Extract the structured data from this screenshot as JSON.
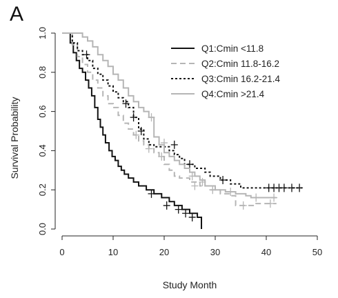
{
  "panel_label": "A",
  "chart_data": {
    "type": "line",
    "title": "",
    "xlabel": "Study Month",
    "ylabel": "Survival Probability",
    "xlim": [
      0,
      50
    ],
    "ylim": [
      0,
      1
    ],
    "xticks": [
      0,
      10,
      20,
      30,
      40,
      50
    ],
    "yticks": [
      0.0,
      0.2,
      0.4,
      0.6,
      0.8,
      1.0
    ],
    "ytick_labels": [
      "0.0",
      "0.2",
      "0.4",
      "0.6",
      "0.8",
      "1.0"
    ],
    "xtick_labels": [
      "0",
      "10",
      "20",
      "30",
      "40",
      "50"
    ],
    "grid": false,
    "legend_position": "top-right",
    "series": [
      {
        "name": "Q1:Cmin <11.8",
        "color": "#111111",
        "dash": "solid",
        "points": [
          [
            0,
            1.0
          ],
          [
            1,
            1.0
          ],
          [
            1.6,
            0.95
          ],
          [
            2.2,
            0.9
          ],
          [
            2.8,
            0.86
          ],
          [
            3.4,
            0.82
          ],
          [
            4,
            0.8
          ],
          [
            4.6,
            0.76
          ],
          [
            5.2,
            0.72
          ],
          [
            5.8,
            0.68
          ],
          [
            6.4,
            0.62
          ],
          [
            7,
            0.56
          ],
          [
            7.5,
            0.52
          ],
          [
            8,
            0.48
          ],
          [
            8.5,
            0.44
          ],
          [
            9.2,
            0.4
          ],
          [
            9.8,
            0.37
          ],
          [
            10.4,
            0.35
          ],
          [
            11,
            0.32
          ],
          [
            11.6,
            0.3
          ],
          [
            12.2,
            0.28
          ],
          [
            13,
            0.26
          ],
          [
            14,
            0.24
          ],
          [
            15,
            0.22
          ],
          [
            16.5,
            0.2
          ],
          [
            18,
            0.18
          ],
          [
            19.5,
            0.16
          ],
          [
            21,
            0.14
          ],
          [
            22,
            0.12
          ],
          [
            23.5,
            0.1
          ],
          [
            25,
            0.08
          ],
          [
            26.5,
            0.06
          ],
          [
            27.3,
            0.0
          ]
        ],
        "censored": [
          [
            17.5,
            0.18
          ],
          [
            20.5,
            0.12
          ],
          [
            22.8,
            0.1
          ],
          [
            24.2,
            0.08
          ],
          [
            25.5,
            0.06
          ]
        ]
      },
      {
        "name": "Q2:Cmin 11.8-16.2",
        "color": "#b5b5b5",
        "dash": "long",
        "points": [
          [
            0,
            1.0
          ],
          [
            1,
            1.0
          ],
          [
            2,
            0.94
          ],
          [
            3,
            0.88
          ],
          [
            4,
            0.84
          ],
          [
            5,
            0.8
          ],
          [
            6,
            0.76
          ],
          [
            7,
            0.72
          ],
          [
            8,
            0.68
          ],
          [
            9,
            0.64
          ],
          [
            10,
            0.62
          ],
          [
            11,
            0.58
          ],
          [
            12,
            0.54
          ],
          [
            13,
            0.51
          ],
          [
            14,
            0.48
          ],
          [
            15,
            0.45
          ],
          [
            16,
            0.43
          ],
          [
            17,
            0.41
          ],
          [
            18,
            0.39
          ],
          [
            19,
            0.37
          ],
          [
            20,
            0.33
          ],
          [
            21,
            0.3
          ],
          [
            22,
            0.27
          ],
          [
            23,
            0.26
          ],
          [
            25,
            0.24
          ],
          [
            27,
            0.22
          ],
          [
            29,
            0.2
          ],
          [
            31,
            0.18
          ],
          [
            33,
            0.17
          ],
          [
            34,
            0.12
          ],
          [
            37,
            0.12
          ],
          [
            38,
            0.13
          ],
          [
            42,
            0.13
          ]
        ],
        "censored": [
          [
            14.5,
            0.48
          ],
          [
            17,
            0.41
          ],
          [
            19.5,
            0.37
          ],
          [
            26,
            0.22
          ],
          [
            35.5,
            0.12
          ],
          [
            40.8,
            0.13
          ]
        ]
      },
      {
        "name": "Q3:Cmin 16.2-21.4",
        "color": "#111111",
        "dash": "dotted",
        "points": [
          [
            0,
            1.0
          ],
          [
            1,
            1.0
          ],
          [
            2,
            0.95
          ],
          [
            3,
            0.91
          ],
          [
            4,
            0.89
          ],
          [
            5,
            0.86
          ],
          [
            6,
            0.82
          ],
          [
            7,
            0.79
          ],
          [
            8,
            0.76
          ],
          [
            9,
            0.73
          ],
          [
            10,
            0.7
          ],
          [
            11,
            0.67
          ],
          [
            12,
            0.65
          ],
          [
            13,
            0.62
          ],
          [
            14,
            0.57
          ],
          [
            15,
            0.51
          ],
          [
            16,
            0.46
          ],
          [
            17,
            0.43
          ],
          [
            18,
            0.42
          ],
          [
            20,
            0.42
          ],
          [
            21,
            0.4
          ],
          [
            22,
            0.38
          ],
          [
            23,
            0.36
          ],
          [
            24,
            0.33
          ],
          [
            26,
            0.31
          ],
          [
            28,
            0.29
          ],
          [
            29,
            0.27
          ],
          [
            31,
            0.25
          ],
          [
            33,
            0.23
          ],
          [
            35,
            0.21
          ],
          [
            47,
            0.21
          ]
        ],
        "censored": [
          [
            4.8,
            0.89
          ],
          [
            12.5,
            0.64
          ],
          [
            14,
            0.57
          ],
          [
            15.5,
            0.5
          ],
          [
            22,
            0.43
          ],
          [
            25,
            0.33
          ],
          [
            31.5,
            0.25
          ],
          [
            40.5,
            0.21
          ],
          [
            41.5,
            0.21
          ],
          [
            42.5,
            0.21
          ],
          [
            43.5,
            0.21
          ],
          [
            45,
            0.21
          ],
          [
            46.5,
            0.21
          ]
        ]
      },
      {
        "name": "Q4:Cmin >21.4",
        "color": "#b5b5b5",
        "dash": "solid",
        "points": [
          [
            0,
            1.0
          ],
          [
            1,
            1.0
          ],
          [
            3,
            1.0
          ],
          [
            4,
            0.98
          ],
          [
            5,
            0.96
          ],
          [
            6,
            0.93
          ],
          [
            7,
            0.89
          ],
          [
            8,
            0.86
          ],
          [
            9,
            0.83
          ],
          [
            10,
            0.79
          ],
          [
            11,
            0.76
          ],
          [
            12,
            0.72
          ],
          [
            13,
            0.68
          ],
          [
            14,
            0.65
          ],
          [
            15,
            0.62
          ],
          [
            16,
            0.6
          ],
          [
            17,
            0.57
          ],
          [
            18,
            0.47
          ],
          [
            19,
            0.43
          ],
          [
            20,
            0.39
          ],
          [
            21,
            0.37
          ],
          [
            22,
            0.35
          ],
          [
            23,
            0.33
          ],
          [
            24,
            0.31
          ],
          [
            25,
            0.29
          ],
          [
            26,
            0.27
          ],
          [
            27,
            0.25
          ],
          [
            28,
            0.22
          ],
          [
            30,
            0.2
          ],
          [
            32,
            0.19
          ],
          [
            34,
            0.18
          ],
          [
            36,
            0.17
          ],
          [
            37,
            0.16
          ],
          [
            42,
            0.16
          ]
        ],
        "censored": [
          [
            17.5,
            0.57
          ],
          [
            20,
            0.44
          ],
          [
            25.5,
            0.27
          ],
          [
            27.5,
            0.24
          ],
          [
            29.5,
            0.2
          ],
          [
            33,
            0.19
          ],
          [
            38,
            0.16
          ],
          [
            41.5,
            0.16
          ]
        ]
      }
    ]
  }
}
